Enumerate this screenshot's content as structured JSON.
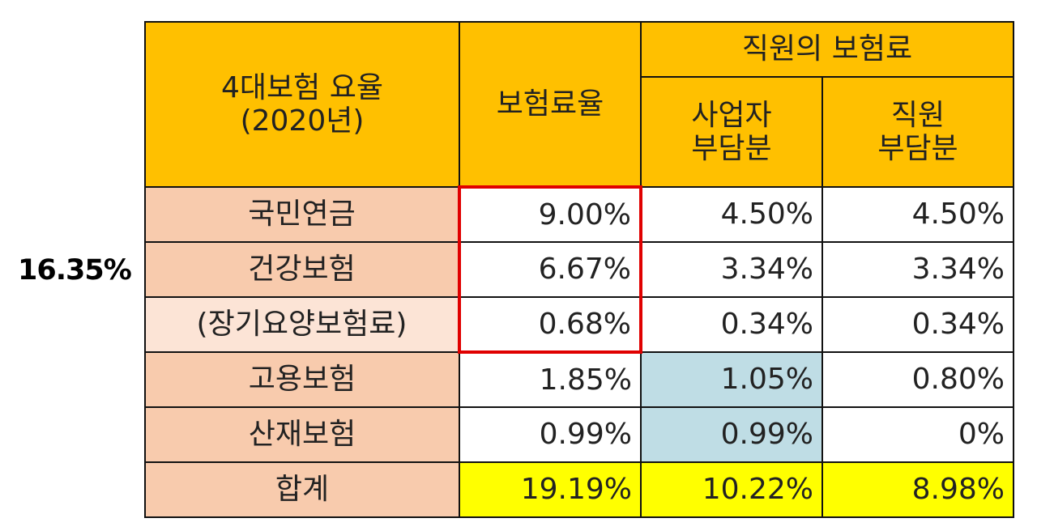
{
  "side_label": "16.35%",
  "table": {
    "header": {
      "category_line1": "4대보험 요율",
      "category_line2": "(2020년)",
      "rate": "보험료율",
      "employee_premium": "직원의 보험료",
      "employer_line1": "사업자",
      "employer_line2": "부담분",
      "employee_line1": "직원",
      "employee_line2": "부담분"
    },
    "rows": [
      {
        "label": "국민연금",
        "rate": "9.00%",
        "employer": "4.50%",
        "employee": "4.50%"
      },
      {
        "label": "건강보험",
        "rate": "6.67%",
        "employer": "3.34%",
        "employee": "3.34%"
      },
      {
        "label": "(장기요양보험료)",
        "rate": "0.68%",
        "employer": "0.34%",
        "employee": "0.34%"
      },
      {
        "label": "고용보험",
        "rate": "1.85%",
        "employer": "1.05%",
        "employee": "0.80%"
      },
      {
        "label": "산재보험",
        "rate": "0.99%",
        "employer": "0.99%",
        "employee": "0%"
      }
    ],
    "total": {
      "label": "합계",
      "rate": "19.19%",
      "employer": "10.22%",
      "employee": "8.98%"
    }
  },
  "colors": {
    "header_bg": "#ffc000",
    "row_label_bg": "#f8cbad",
    "highlight_blue": "#bfdde5",
    "total_yellow": "#ffff00",
    "red_box": "#e00000"
  }
}
